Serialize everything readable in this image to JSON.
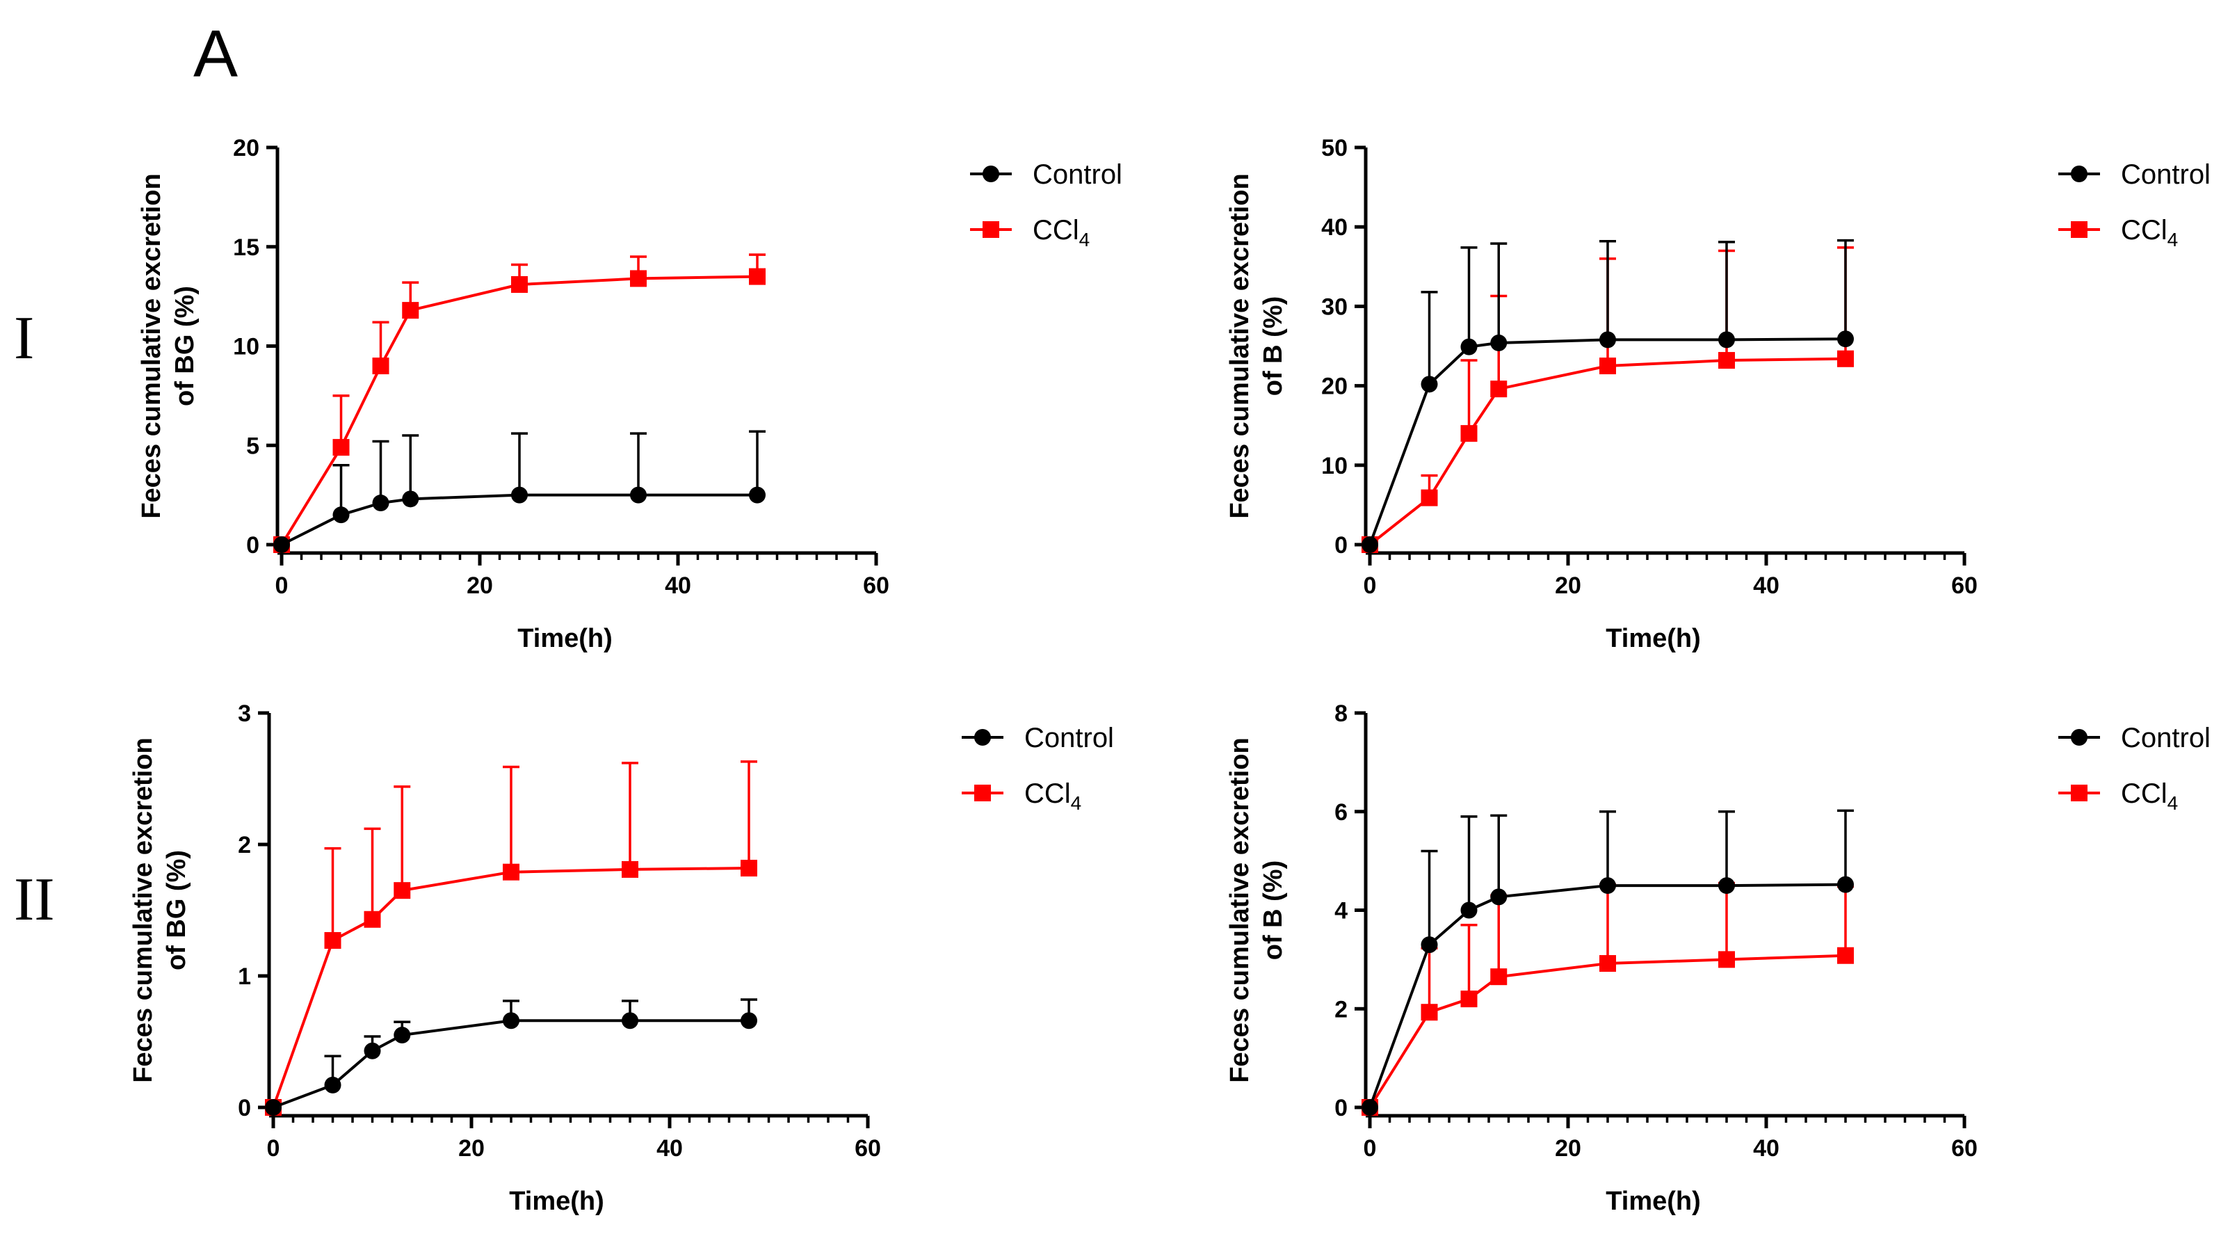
{
  "panel_letter": "A",
  "row_labels": [
    "I",
    "II"
  ],
  "colors": {
    "control": "#000000",
    "ccl4": "#ff0000"
  },
  "legend": {
    "control": "Control",
    "ccl4_main": "CCl",
    "ccl4_sub": "4"
  },
  "chart_data": [
    {
      "type": "line",
      "id": "I-BG",
      "xlabel": "Time(h)",
      "ylabel_lines": [
        "Feces cumulative excretion",
        "of BG (%)"
      ],
      "xlim": [
        0,
        60
      ],
      "ylim": [
        0,
        20
      ],
      "xticks": [
        0,
        20,
        40,
        60
      ],
      "yticks": [
        0,
        5,
        10,
        15,
        20
      ],
      "x": [
        0,
        6,
        10,
        13,
        24,
        36,
        48
      ],
      "series": [
        {
          "name": "Control",
          "values": [
            0,
            1.5,
            2.1,
            2.3,
            2.5,
            2.5,
            2.5
          ],
          "error": [
            0,
            2.5,
            3.1,
            3.2,
            3.1,
            3.1,
            3.2
          ]
        },
        {
          "name": "CCl4",
          "values": [
            0,
            4.9,
            9.0,
            11.8,
            13.1,
            13.4,
            13.5
          ],
          "error": [
            0,
            2.6,
            2.2,
            1.4,
            1.0,
            1.1,
            1.1
          ]
        }
      ]
    },
    {
      "type": "line",
      "id": "I-B",
      "xlabel": "Time(h)",
      "ylabel_lines": [
        "Feces cumulative excretion",
        "of B (%)"
      ],
      "xlim": [
        0,
        60
      ],
      "ylim": [
        0,
        50
      ],
      "xticks": [
        0,
        20,
        40,
        60
      ],
      "yticks": [
        0,
        10,
        20,
        30,
        40,
        50
      ],
      "x": [
        0,
        6,
        10,
        13,
        24,
        36,
        48
      ],
      "series": [
        {
          "name": "Control",
          "values": [
            0,
            20.2,
            24.9,
            25.4,
            25.8,
            25.8,
            25.9
          ],
          "error": [
            0,
            11.6,
            12.5,
            12.5,
            12.4,
            12.3,
            12.4
          ]
        },
        {
          "name": "CCl4",
          "values": [
            0,
            5.9,
            14.0,
            19.6,
            22.5,
            23.2,
            23.4
          ],
          "error": [
            0,
            2.8,
            9.2,
            11.7,
            13.5,
            13.8,
            14.0
          ]
        }
      ]
    },
    {
      "type": "line",
      "id": "II-BG",
      "xlabel": "Time(h)",
      "ylabel_lines": [
        "Feces cumulative excretion",
        "of BG (%)"
      ],
      "xlim": [
        0,
        60
      ],
      "ylim": [
        0,
        3
      ],
      "xticks": [
        0,
        20,
        40,
        60
      ],
      "yticks": [
        0,
        1,
        2,
        3
      ],
      "x": [
        0,
        6,
        10,
        13,
        24,
        36,
        48
      ],
      "series": [
        {
          "name": "Control",
          "values": [
            0,
            0.17,
            0.43,
            0.55,
            0.66,
            0.66,
            0.66
          ],
          "error": [
            0,
            0.22,
            0.11,
            0.1,
            0.15,
            0.15,
            0.16
          ]
        },
        {
          "name": "CCl4",
          "values": [
            0,
            1.27,
            1.43,
            1.65,
            1.79,
            1.81,
            1.82
          ],
          "error": [
            0,
            0.7,
            0.69,
            0.79,
            0.8,
            0.81,
            0.81
          ]
        }
      ]
    },
    {
      "type": "line",
      "id": "II-B",
      "xlabel": "Time(h)",
      "ylabel_lines": [
        "Feces cumulative excretion",
        "of B (%)"
      ],
      "xlim": [
        0,
        60
      ],
      "ylim": [
        0,
        8
      ],
      "xticks": [
        0,
        20,
        40,
        60
      ],
      "yticks": [
        0,
        2,
        4,
        6,
        8
      ],
      "x": [
        0,
        6,
        10,
        13,
        24,
        36,
        48
      ],
      "series": [
        {
          "name": "Control",
          "values": [
            0,
            3.3,
            4.0,
            4.27,
            4.5,
            4.5,
            4.52
          ],
          "error": [
            0,
            1.9,
            1.9,
            1.65,
            1.5,
            1.5,
            1.5
          ]
        },
        {
          "name": "CCl4",
          "values": [
            0,
            1.93,
            2.2,
            2.65,
            2.92,
            3.0,
            3.08
          ],
          "error": [
            0,
            1.3,
            1.5,
            1.65,
            1.6,
            1.55,
            1.4
          ]
        }
      ]
    }
  ]
}
